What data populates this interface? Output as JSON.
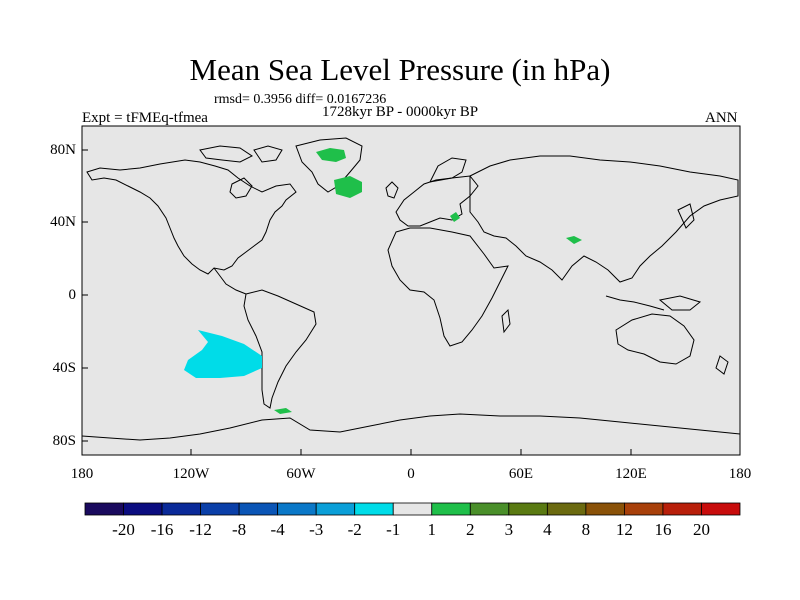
{
  "title": "Mean Sea Level Pressure (in hPa)",
  "stats": "rmsd= 0.3956 diff= 0.0167236",
  "experiment": "Expt = tFMEq-tfmea",
  "period": "1728kyr BP - 0000kyr BP",
  "season": "ANN",
  "lat_labels": [
    "80N",
    "40N",
    "0",
    "40S",
    "80S"
  ],
  "lon_labels": [
    "180",
    "120W",
    "60W",
    "0",
    "60E",
    "120E",
    "180"
  ],
  "colorbar": {
    "labels": [
      "-20",
      "-16",
      "-12",
      "-8",
      "-4",
      "-3",
      "-2",
      "-1",
      "1",
      "2",
      "3",
      "4",
      "8",
      "12",
      "16",
      "20"
    ],
    "colors": [
      "#1a0a5e",
      "#0b0d80",
      "#0a2a99",
      "#0a3fa8",
      "#0a55b6",
      "#0a78c8",
      "#0a9fd8",
      "#00dce8",
      "#e6e6e6",
      "#1fbf4a",
      "#4a8f2a",
      "#5a7a12",
      "#6b6a10",
      "#8a5208",
      "#a8400a",
      "#b81f0a",
      "#c80c0c"
    ]
  },
  "map_colors": {
    "background": "#e6e6e6",
    "coast": "#000000"
  },
  "anomalies": [
    {
      "name": "greenland-positive",
      "class": "1 to 2",
      "color": "#1fbf4a"
    },
    {
      "name": "north-atlantic-positive",
      "class": "1 to 2",
      "color": "#1fbf4a"
    },
    {
      "name": "balkans-positive",
      "class": "1 to 2",
      "color": "#1fbf4a"
    },
    {
      "name": "tibet-positive",
      "class": "1 to 2",
      "color": "#1fbf4a"
    },
    {
      "name": "drake-passage-positive",
      "class": "1 to 2",
      "color": "#1fbf4a"
    },
    {
      "name": "south-pacific-negative",
      "class": "-2 to -1",
      "color": "#00dce8"
    }
  ]
}
